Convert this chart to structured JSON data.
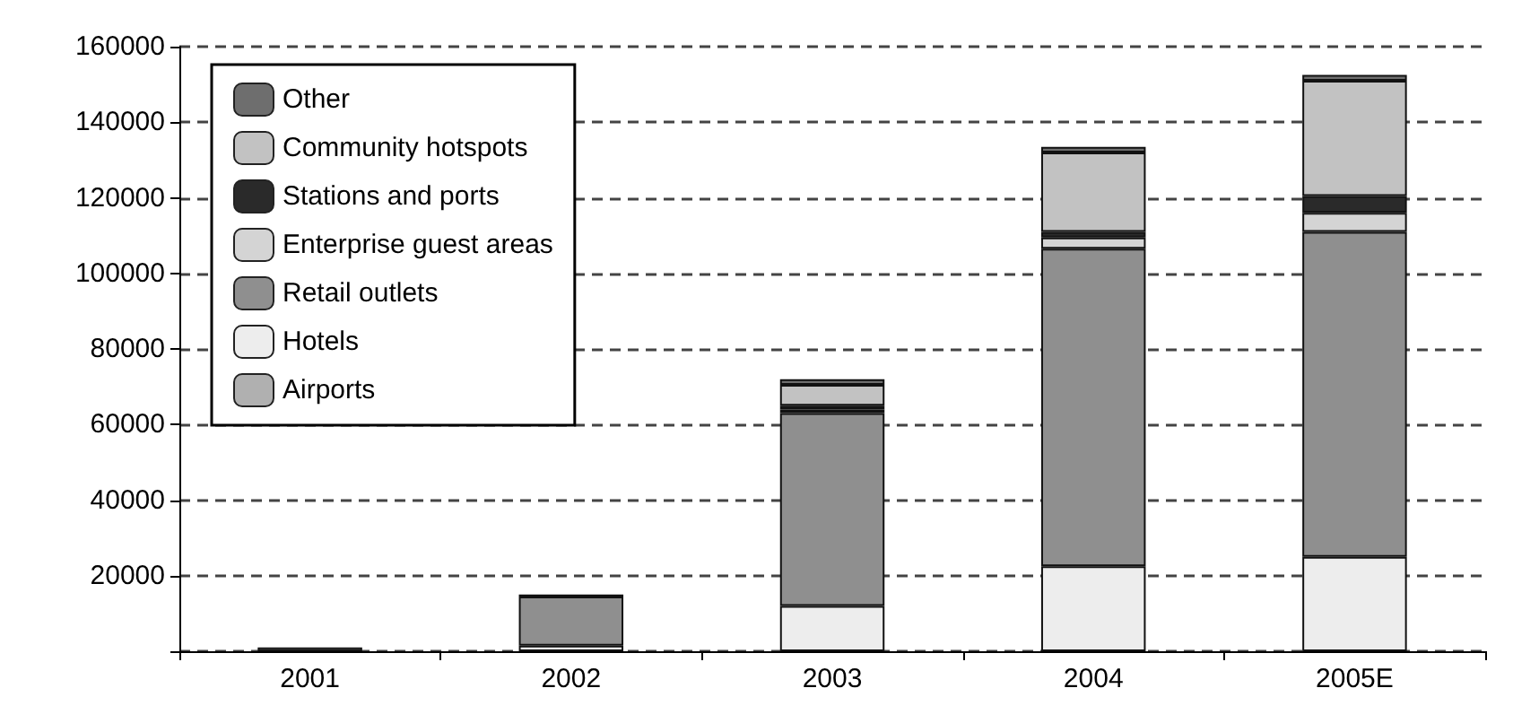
{
  "chart_data": {
    "type": "bar",
    "stacked": true,
    "categories": [
      "2001",
      "2002",
      "2003",
      "2004",
      "2005E"
    ],
    "series": [
      {
        "name": "Airports",
        "color": "#b0b0b0",
        "values": [
          1000,
          null,
          null,
          null,
          null
        ]
      },
      {
        "name": "Hotels",
        "color": "#ededed",
        "values": [
          null,
          1500,
          12000,
          22500,
          25000
        ]
      },
      {
        "name": "Retail outlets",
        "color": "#8f8f8f",
        "values": [
          null,
          13000,
          51000,
          84000,
          86000
        ]
      },
      {
        "name": "Enterprise guest areas",
        "color": "#d4d4d4",
        "values": [
          null,
          null,
          1000,
          3000,
          5000
        ]
      },
      {
        "name": "Stations and ports",
        "color": "#2a2a2a",
        "values": [
          null,
          null,
          1000,
          1500,
          4500
        ]
      },
      {
        "name": "Community hotspots",
        "color": "#c2c2c2",
        "values": [
          null,
          null,
          5500,
          21000,
          30500
        ]
      },
      {
        "name": "Other",
        "color": "#6e6e6e",
        "values": [
          null,
          500,
          1500,
          1500,
          1500
        ]
      }
    ],
    "ylim": [
      0,
      160000
    ],
    "yticks": [
      {
        "value": 0,
        "label": null
      },
      20000,
      40000,
      60000,
      80000,
      100000,
      120000,
      140000,
      160000
    ],
    "grid": "y",
    "legend": "top left"
  }
}
